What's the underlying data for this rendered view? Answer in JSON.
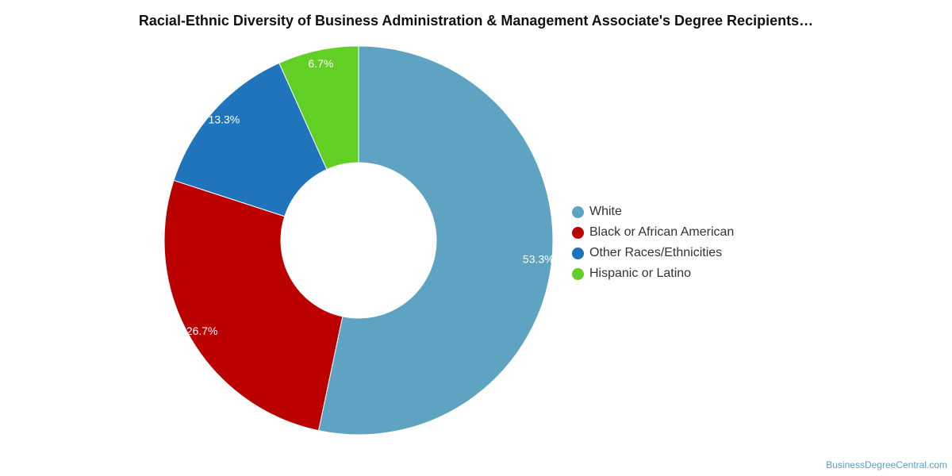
{
  "chart_data": {
    "type": "pie",
    "title": "Racial-Ethnic Diversity of Business Administration & Management Associate's Degree Recipients…",
    "donut": true,
    "legend_position": "right",
    "slices": [
      {
        "name": "White",
        "value": 53.3,
        "label": "53.3%",
        "color": "#5ea3c1"
      },
      {
        "name": "Black or African American",
        "value": 26.7,
        "label": "26.7%",
        "color": "#bb0000"
      },
      {
        "name": "Other Races/Ethnicities",
        "value": 13.3,
        "label": "13.3%",
        "color": "#1f74bb"
      },
      {
        "name": "Hispanic or Latino",
        "value": 6.7,
        "label": "6.7%",
        "color": "#62cf25"
      }
    ]
  },
  "watermark": "BusinessDegreeCentral.com"
}
